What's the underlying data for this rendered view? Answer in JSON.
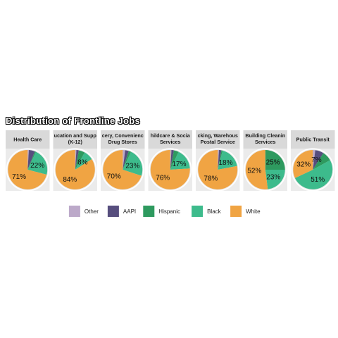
{
  "chart_data": {
    "type": "pie",
    "title": "Distribution of Frontline Jobs",
    "legend_position": "bottom",
    "legend": [
      "Other",
      "AAPI",
      "Hispanic",
      "Black",
      "White"
    ],
    "colors": {
      "Other": "#bca9c9",
      "AAPI": "#574e7e",
      "Hispanic": "#2e9a5f",
      "Black": "#3dbb8c",
      "White": "#f0a443"
    },
    "panels": [
      {
        "label_lines": [
          "Health Care"
        ],
        "slices": [
          {
            "group": "Other",
            "value": 1
          },
          {
            "group": "AAPI",
            "value": 5
          },
          {
            "group": "Hispanic",
            "value": 1
          },
          {
            "group": "Black",
            "value": 22,
            "label": "22%"
          },
          {
            "group": "White",
            "value": 71,
            "label": "71%"
          }
        ]
      },
      {
        "label_lines": [
          "ucation and Supp",
          "(K-12)"
        ],
        "slices": [
          {
            "group": "Other",
            "value": 1
          },
          {
            "group": "AAPI",
            "value": 2
          },
          {
            "group": "Hispanic",
            "value": 5
          },
          {
            "group": "Black",
            "value": 8,
            "label": "8%"
          },
          {
            "group": "White",
            "value": 84,
            "label": "84%"
          }
        ]
      },
      {
        "label_lines": [
          "cery, Convenienc",
          "Drug Stores"
        ],
        "slices": [
          {
            "group": "Other",
            "value": 2
          },
          {
            "group": "AAPI",
            "value": 3
          },
          {
            "group": "Hispanic",
            "value": 2
          },
          {
            "group": "Black",
            "value": 23,
            "label": "23%"
          },
          {
            "group": "White",
            "value": 70,
            "label": "70%"
          }
        ]
      },
      {
        "label_lines": [
          "hildcare & Socia",
          "Services"
        ],
        "slices": [
          {
            "group": "Other",
            "value": 1
          },
          {
            "group": "AAPI",
            "value": 2
          },
          {
            "group": "Hispanic",
            "value": 4
          },
          {
            "group": "Black",
            "value": 17,
            "label": "17%"
          },
          {
            "group": "White",
            "value": 76,
            "label": "76%"
          }
        ]
      },
      {
        "label_lines": [
          "cking, Warehous",
          "Postal Service"
        ],
        "slices": [
          {
            "group": "Other",
            "value": 1
          },
          {
            "group": "AAPI",
            "value": 2
          },
          {
            "group": "Hispanic",
            "value": 1
          },
          {
            "group": "Black",
            "value": 18,
            "label": "18%"
          },
          {
            "group": "White",
            "value": 78,
            "label": "78%"
          }
        ]
      },
      {
        "label_lines": [
          "Building Cleanin",
          "Services"
        ],
        "slices": [
          {
            "group": "Other",
            "value": 0
          },
          {
            "group": "AAPI",
            "value": 0
          },
          {
            "group": "Hispanic",
            "value": 25,
            "label": "25%"
          },
          {
            "group": "Black",
            "value": 23,
            "label": "23%"
          },
          {
            "group": "White",
            "value": 52,
            "label": "52%"
          }
        ]
      },
      {
        "label_lines": [
          "Public Transit"
        ],
        "slices": [
          {
            "group": "Other",
            "value": 2
          },
          {
            "group": "AAPI",
            "value": 7,
            "label": "7%"
          },
          {
            "group": "Hispanic",
            "value": 8
          },
          {
            "group": "Black",
            "value": 51,
            "label": "51%"
          },
          {
            "group": "White",
            "value": 32,
            "label": "32%"
          }
        ]
      }
    ]
  }
}
